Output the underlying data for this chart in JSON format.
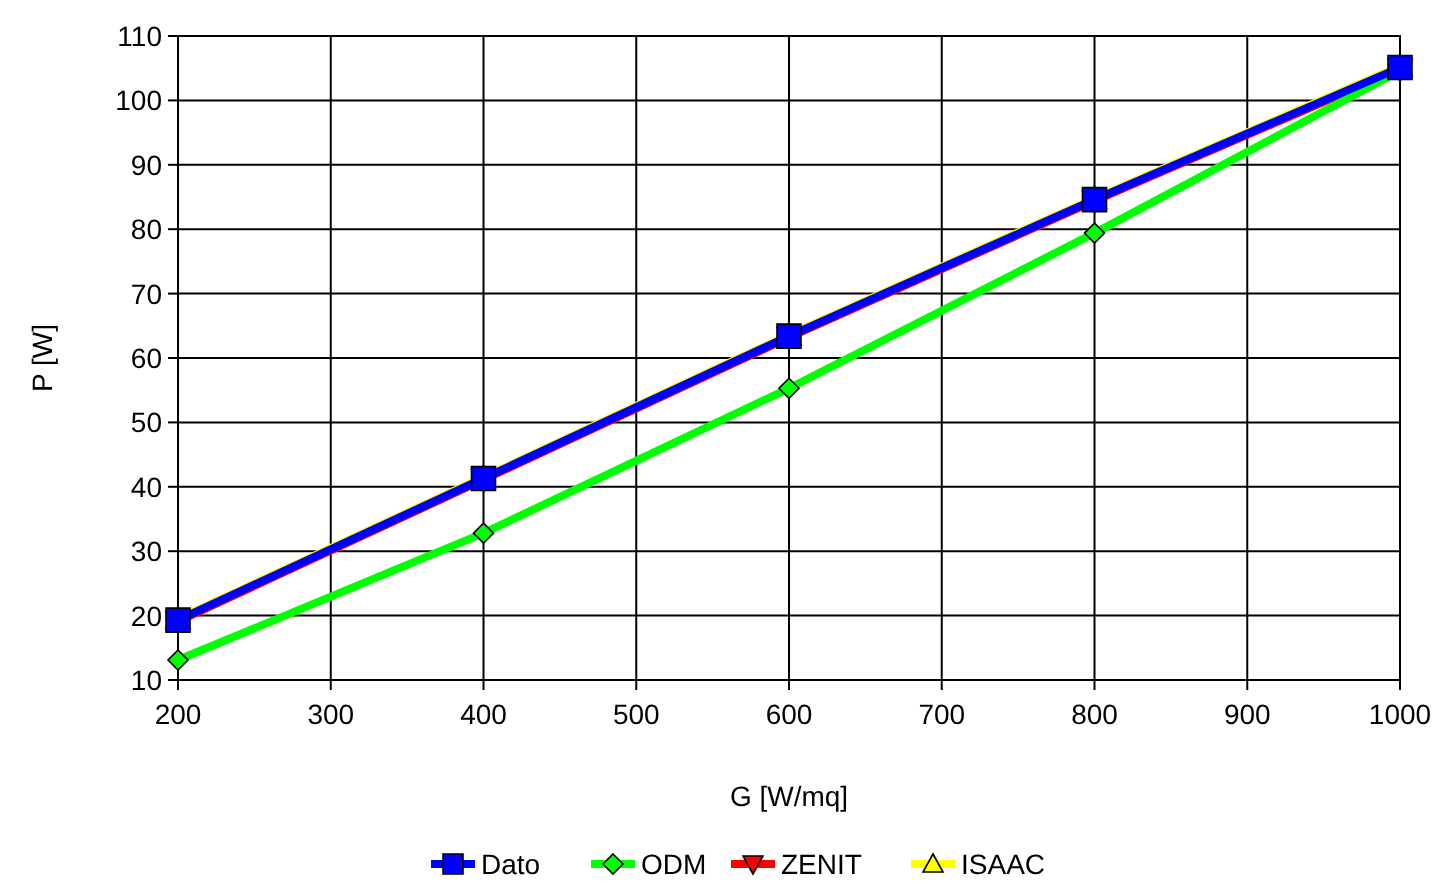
{
  "chart_data": {
    "type": "line",
    "xlabel": "G [W/mq]",
    "ylabel": "P [W]",
    "x": [
      200,
      400,
      600,
      800,
      1000
    ],
    "xlim": [
      200,
      1000
    ],
    "xticks": [
      200,
      300,
      400,
      500,
      600,
      700,
      800,
      900,
      1000
    ],
    "ylim": [
      10,
      110
    ],
    "yticks": [
      10,
      20,
      30,
      40,
      50,
      60,
      70,
      80,
      90,
      100,
      110
    ],
    "grid": true,
    "legend": "bottom",
    "line_style": "solid",
    "series": [
      {
        "name": "Dato",
        "color": "#0000ff",
        "marker": "square",
        "values": [
          19.3,
          41.3,
          63.4,
          84.6,
          105.1
        ]
      },
      {
        "name": "ODM",
        "color": "#00ff00",
        "marker": "diamond",
        "values": [
          13.1,
          32.8,
          55.3,
          79.4,
          104.6
        ]
      },
      {
        "name": "ZENIT",
        "color": "#ff0000",
        "marker": "triangle-down",
        "values": [
          19.1,
          41.1,
          63.2,
          84.4,
          104.9
        ]
      },
      {
        "name": "ISAAC",
        "color": "#ffff00",
        "marker": "triangle",
        "values": [
          19.5,
          41.5,
          63.6,
          84.8,
          105.3
        ]
      }
    ]
  }
}
